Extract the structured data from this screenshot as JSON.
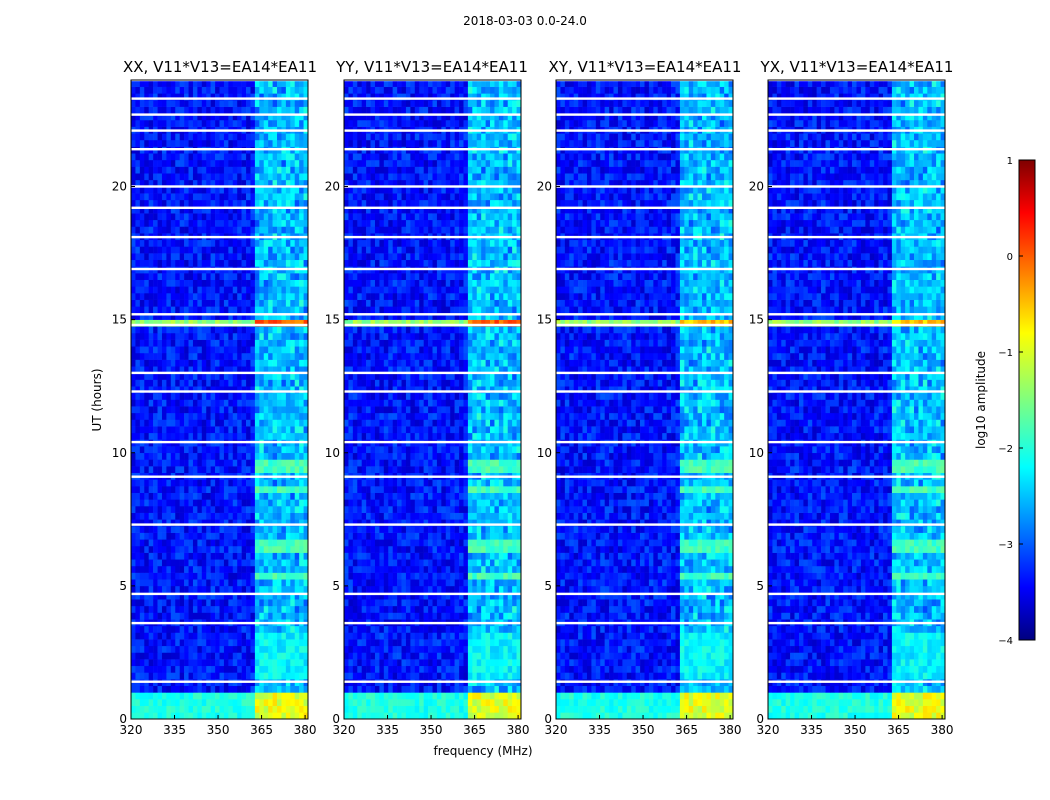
{
  "chart_data": {
    "type": "heatmap",
    "suptitle": "2018-03-03 0.0-24.0",
    "xlabel": "frequency (MHz)",
    "ylabel": "UT (hours)",
    "x_range": [
      320,
      381
    ],
    "y_range": [
      0,
      24
    ],
    "x_ticks": [
      320,
      335,
      350,
      365,
      380
    ],
    "y_ticks": [
      0,
      5,
      10,
      15,
      20
    ],
    "colorbar": {
      "label": "log$_{10}$ amplitude",
      "label_text": "log10 amplitude",
      "range": [
        -4,
        1
      ],
      "ticks": [
        1,
        0,
        -1,
        -2,
        -3,
        -4
      ],
      "colormap": "jet"
    },
    "panels": [
      {
        "title": "XX, V11*V13=EA14*EA11",
        "pol": "XX"
      },
      {
        "title": "YY, V11*V13=EA14*EA11",
        "pol": "YY"
      },
      {
        "title": "XY, V11*V13=EA14*EA11",
        "pol": "XY"
      },
      {
        "title": "YX, V11*V13=EA14*EA11",
        "pol": "YX"
      }
    ],
    "features": {
      "background_level": -3.3,
      "rfi_band_mhz": [
        362,
        381
      ],
      "blank_rows_hours": [
        1.4,
        3.6,
        4.7,
        7.3,
        9.1,
        10.4,
        12.3,
        13.0,
        14.8,
        15.2,
        16.9,
        18.1,
        19.2,
        20.0,
        21.4,
        22.1,
        22.7,
        23.3,
        24.0
      ],
      "bright_bursts": [
        {
          "ut_start": 0.1,
          "ut_end": 1.1,
          "level": -1.0
        },
        {
          "ut_start": 14.85,
          "ut_end": 15.1,
          "level": -0.6
        }
      ]
    }
  }
}
